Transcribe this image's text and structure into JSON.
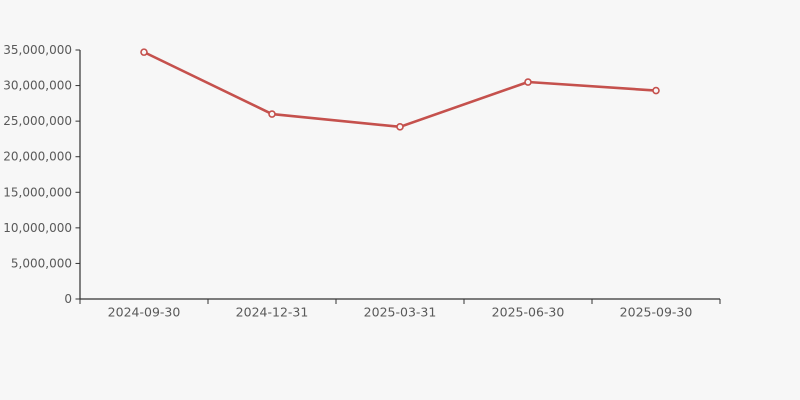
{
  "chart_data": {
    "type": "line",
    "title": "",
    "xlabel": "",
    "ylabel": "",
    "categories": [
      "2024-09-30",
      "2024-12-31",
      "2025-03-31",
      "2025-06-30",
      "2025-09-30"
    ],
    "series": [
      {
        "name": "series-1",
        "values": [
          34700000,
          26000000,
          24200000,
          30500000,
          29300000
        ]
      }
    ],
    "ylim": [
      0,
      35000000
    ],
    "y_ticks": [
      0,
      5000000,
      10000000,
      15000000,
      20000000,
      25000000,
      30000000,
      35000000
    ],
    "y_tick_labels": [
      "0",
      "5,000,000",
      "10,000,000",
      "15,000,000",
      "20,000,000",
      "25,000,000",
      "30,000,000",
      "35,000,000"
    ],
    "grid": "off",
    "legend": "none",
    "marker": "hollow-circle"
  },
  "colors": {
    "background": "#f7f7f7",
    "line": "#c5514d",
    "marker_fill": "#f7f7f7",
    "axis": "#333333",
    "label": "#595959"
  }
}
